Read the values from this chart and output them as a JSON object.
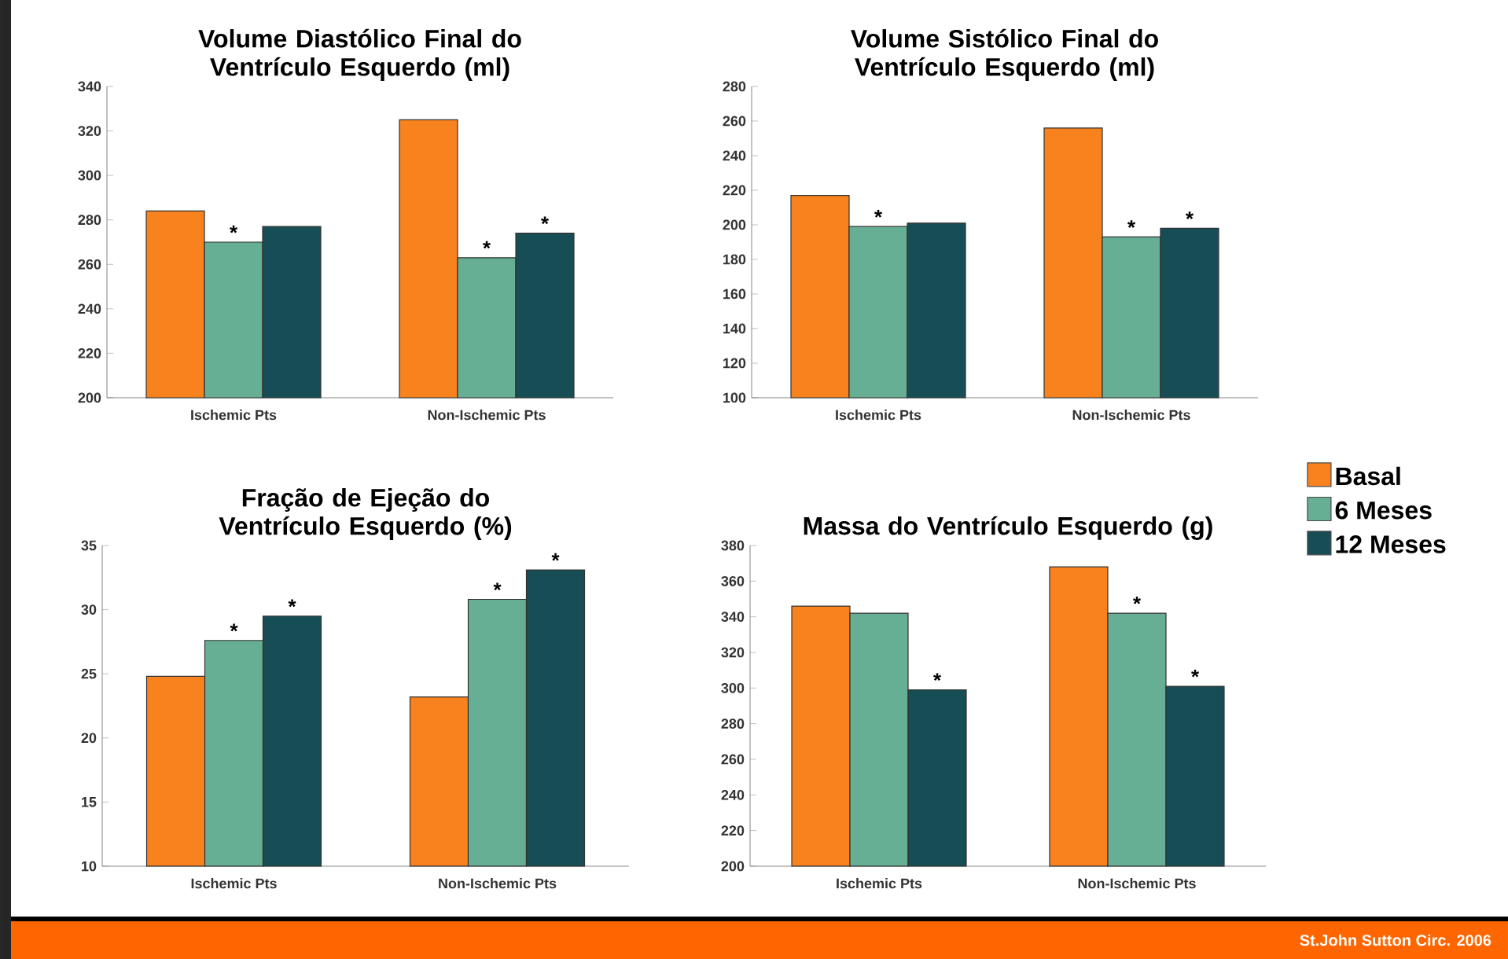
{
  "chart_data": [
    {
      "type": "bar",
      "title": "Volume Diastólico Final do Ventrículo Esquerdo (ml)",
      "categories": [
        "Ischemic Pts",
        "Non-Ischemic Pts"
      ],
      "ylim": [
        200,
        340
      ],
      "yticks": [
        200,
        220,
        240,
        260,
        280,
        300,
        320,
        340
      ],
      "series": [
        {
          "color": "#f7821e",
          "values": [
            284,
            325
          ],
          "value_labels": [
            null,
            null
          ]
        },
        {
          "color": "#66ae94",
          "values": [
            270,
            263
          ],
          "value_labels": [
            "*",
            "*"
          ]
        },
        {
          "color": "#174d55",
          "values": [
            277,
            274
          ],
          "value_labels": [
            null,
            "*"
          ]
        }
      ]
    },
    {
      "type": "bar",
      "title": "Volume Sistólico Final do Ventrículo Esquerdo (ml)",
      "categories": [
        "Ischemic Pts",
        "Non-Ischemic Pts"
      ],
      "ylim": [
        100,
        280
      ],
      "yticks": [
        100,
        120,
        140,
        160,
        180,
        200,
        220,
        240,
        260,
        280
      ],
      "series": [
        {
          "color": "#f7821e",
          "values": [
            217,
            256
          ],
          "value_labels": [
            null,
            null
          ]
        },
        {
          "color": "#66ae94",
          "values": [
            199,
            193
          ],
          "value_labels": [
            "*",
            "*"
          ]
        },
        {
          "color": "#174d55",
          "values": [
            201,
            198
          ],
          "value_labels": [
            null,
            "*"
          ]
        }
      ]
    },
    {
      "type": "bar",
      "title": "Fração de Ejeção do Ventrículo Esquerdo (%)",
      "categories": [
        "Ischemic Pts",
        "Non-Ischemic Pts"
      ],
      "ylim": [
        10,
        35
      ],
      "yticks": [
        10,
        15,
        20,
        25,
        30,
        35
      ],
      "series": [
        {
          "color": "#f7821e",
          "values": [
            24.8,
            23.2
          ],
          "value_labels": [
            null,
            null
          ]
        },
        {
          "color": "#66ae94",
          "values": [
            27.6,
            30.8
          ],
          "value_labels": [
            "*",
            "*"
          ]
        },
        {
          "color": "#174d55",
          "values": [
            29.5,
            33.1
          ],
          "value_labels": [
            "*",
            "*"
          ]
        }
      ]
    },
    {
      "type": "bar",
      "title": "Massa do Ventrículo Esquerdo (g)",
      "categories": [
        "Ischemic Pts",
        "Non-Ischemic Pts"
      ],
      "ylim": [
        200,
        380
      ],
      "yticks": [
        200,
        220,
        240,
        260,
        280,
        300,
        320,
        340,
        360,
        380
      ],
      "legend": "right",
      "annotations": [
        "St.John Sutton Circ. 2006"
      ],
      "series": [
        {
          "name": "Basal",
          "color": "#f7821e",
          "values": [
            346,
            368
          ],
          "value_labels": [
            null,
            null
          ]
        },
        {
          "name": "6 Meses",
          "color": "#66ae94",
          "values": [
            342,
            342
          ],
          "value_labels": [
            null,
            "*"
          ]
        },
        {
          "name": "12 Meses",
          "color": "#174d55",
          "values": [
            299,
            301
          ],
          "value_labels": [
            "*",
            "*"
          ]
        }
      ]
    }
  ]
}
